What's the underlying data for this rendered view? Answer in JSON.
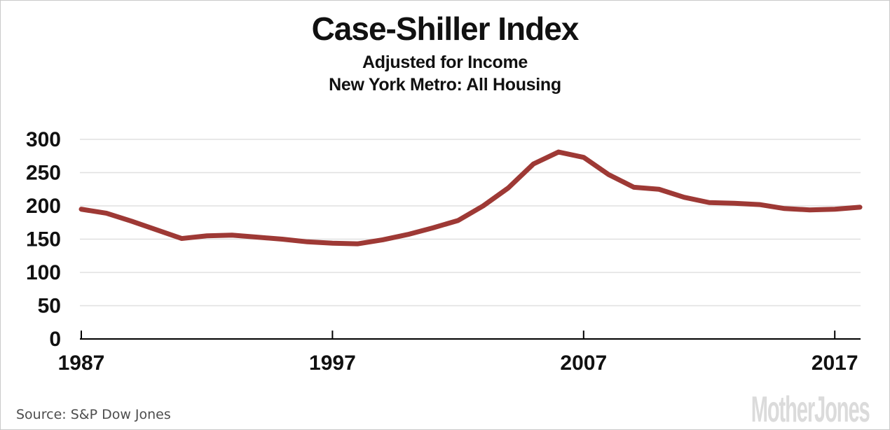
{
  "chart_data": {
    "type": "line",
    "title": "Case-Shiller Index",
    "subtitle": [
      "Adjusted for Income",
      "New York Metro: All Housing"
    ],
    "series_name": "Case-Shiller home price index adjusted for income, New York metro, all housing",
    "x": [
      1987,
      1988,
      1989,
      1990,
      1991,
      1992,
      1993,
      1994,
      1995,
      1996,
      1997,
      1998,
      1999,
      2000,
      2001,
      2002,
      2003,
      2004,
      2005,
      2006,
      2007,
      2008,
      2009,
      2010,
      2011,
      2012,
      2013,
      2014,
      2015,
      2016,
      2017,
      2018
    ],
    "values": [
      195,
      189,
      177,
      164,
      151,
      155,
      156,
      153,
      150,
      146,
      144,
      143,
      149,
      157,
      167,
      178,
      200,
      227,
      263,
      281,
      273,
      247,
      228,
      225,
      213,
      205,
      204,
      202,
      196,
      194,
      195,
      198
    ],
    "xlabel": "",
    "ylabel": "",
    "ylim": [
      0,
      300
    ],
    "xlim": [
      1987,
      2018.2
    ],
    "y_ticks": [
      0,
      50,
      100,
      150,
      200,
      250,
      300
    ],
    "x_ticks": [
      1987,
      1997,
      2007,
      2017
    ],
    "grid": "horizontal",
    "legend": "none",
    "line_color": "#9e3935"
  },
  "footer": {
    "source": "Source: S&P Dow Jones",
    "watermark": "MotherJones"
  },
  "colors": {
    "line": "#9e3935",
    "grid": "#e0e0e0",
    "axis": "#000000",
    "source_text": "#4d4d4d",
    "watermark": "#dbdbdb"
  }
}
